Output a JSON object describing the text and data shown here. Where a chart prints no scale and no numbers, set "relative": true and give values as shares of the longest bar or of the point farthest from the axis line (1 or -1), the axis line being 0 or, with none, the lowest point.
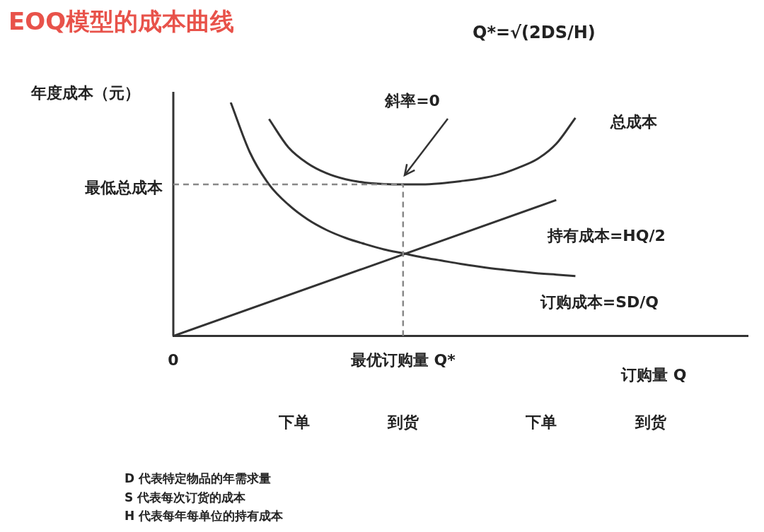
{
  "chart_data": {
    "type": "line",
    "title": "EOQ模型的成本曲线",
    "subtitle": "Q*=√(2DS/H)",
    "ylabel": "年度成本（元）",
    "xlabel": "订购量 Q",
    "relative": true,
    "categories": [
      "0",
      null,
      null,
      null,
      null,
      null,
      null,
      null,
      null,
      null,
      null,
      null,
      "最优订购量 Q*",
      null,
      null,
      null,
      null,
      null,
      null,
      null,
      null,
      null,
      null,
      null,
      null,
      null,
      null,
      null,
      null,
      null,
      null
    ],
    "series": [
      {
        "name": "总成本",
        "color": "#333333",
        "values": [
          null,
          null,
          null,
          null,
          null,
          0.929,
          0.809,
          0.74,
          0.697,
          0.671,
          0.657,
          0.651,
          0.649,
          0.649,
          0.654,
          0.663,
          0.674,
          0.691,
          0.72,
          0.757,
          0.823,
          0.934,
          null,
          null,
          null,
          null,
          null,
          null,
          null,
          null,
          null
        ]
      },
      {
        "name": "持有成本=HQ/2",
        "color": "#333333",
        "values": [
          0,
          null,
          null,
          null,
          null,
          null,
          null,
          null,
          null,
          null,
          null,
          null,
          null,
          null,
          null,
          null,
          null,
          null,
          null,
          null,
          0.582,
          null,
          null,
          null,
          null,
          null,
          null,
          null,
          null,
          null,
          null
        ]
      },
      {
        "name": "订购成本=SD/Q",
        "color": "#333333",
        "values": [
          null,
          null,
          null,
          1,
          0.786,
          0.649,
          0.563,
          0.5,
          0.454,
          0.42,
          0.394,
          0.371,
          0.354,
          0.337,
          0.323,
          0.309,
          0.297,
          0.286,
          0.277,
          0.269,
          0.263,
          0.257,
          null,
          null,
          null,
          null,
          null,
          null,
          null,
          null,
          null
        ]
      }
    ],
    "ref_lines": [
      {
        "axis": "y",
        "value": 0.649,
        "label": "最低总成本",
        "color": "#888888",
        "line_style": "dashed"
      },
      {
        "axis": "x",
        "value": "最优订购量 Q*",
        "color": "#888888",
        "line_style": "dashed"
      }
    ],
    "annotations": [
      "斜率=0",
      "下单",
      "到货",
      "下单",
      "到货",
      "D 代表特定物品的年需求量",
      "S 代表每次订货的成本",
      "H 代表每年每单位的持有成本"
    ],
    "legend": false
  }
}
